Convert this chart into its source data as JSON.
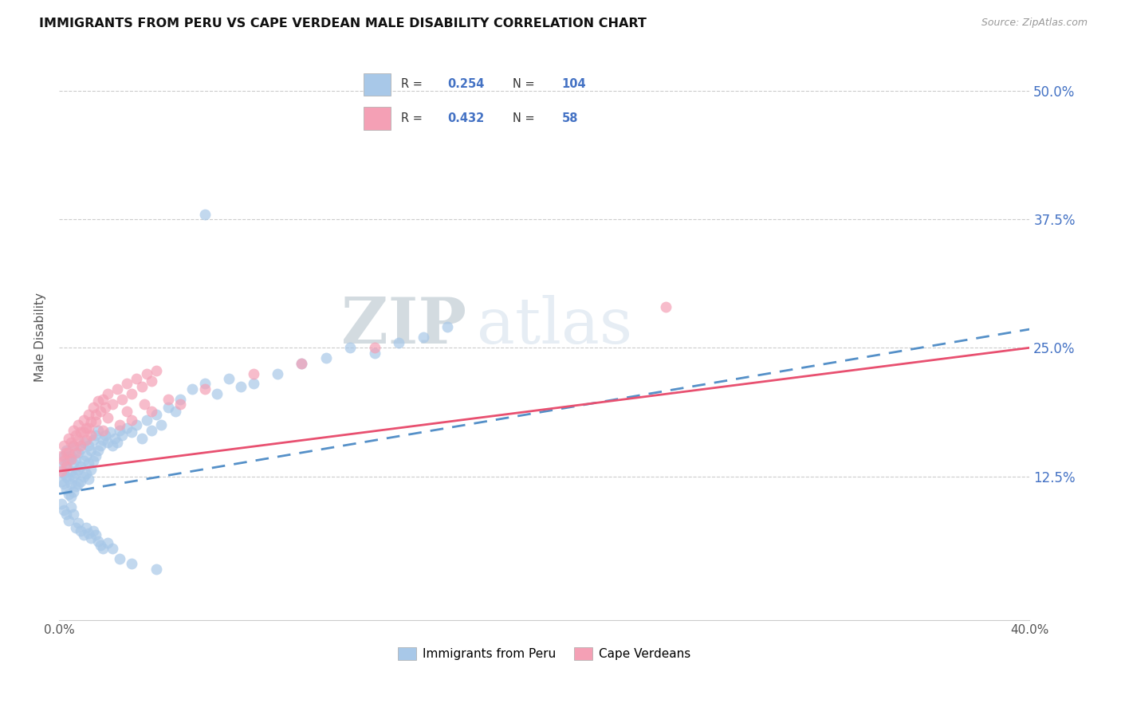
{
  "title": "IMMIGRANTS FROM PERU VS CAPE VERDEAN MALE DISABILITY CORRELATION CHART",
  "source": "Source: ZipAtlas.com",
  "ylabel": "Male Disability",
  "ytick_labels": [
    "12.5%",
    "25.0%",
    "37.5%",
    "50.0%"
  ],
  "ytick_values": [
    0.125,
    0.25,
    0.375,
    0.5
  ],
  "xlim": [
    0.0,
    0.4
  ],
  "ylim": [
    -0.015,
    0.535
  ],
  "legend_label1": "Immigrants from Peru",
  "legend_label2": "Cape Verdeans",
  "legend_R1": "0.254",
  "legend_N1": "104",
  "legend_R2": "0.432",
  "legend_N2": "58",
  "color1": "#a8c8e8",
  "color2": "#f4a0b5",
  "trendline1_color": "#5590c8",
  "trendline2_color": "#e85070",
  "watermark_color": "#c8d8e8",
  "trendline1_intercept": 0.108,
  "trendline1_slope": 0.4,
  "trendline2_intercept": 0.13,
  "trendline2_slope": 0.3,
  "peru_x": [
    0.001,
    0.001,
    0.002,
    0.002,
    0.002,
    0.003,
    0.003,
    0.003,
    0.003,
    0.004,
    0.004,
    0.004,
    0.005,
    0.005,
    0.005,
    0.005,
    0.006,
    0.006,
    0.006,
    0.006,
    0.007,
    0.007,
    0.007,
    0.008,
    0.008,
    0.008,
    0.009,
    0.009,
    0.009,
    0.01,
    0.01,
    0.01,
    0.011,
    0.011,
    0.012,
    0.012,
    0.012,
    0.013,
    0.013,
    0.014,
    0.014,
    0.015,
    0.015,
    0.016,
    0.016,
    0.017,
    0.018,
    0.019,
    0.02,
    0.021,
    0.022,
    0.023,
    0.024,
    0.025,
    0.026,
    0.028,
    0.03,
    0.032,
    0.034,
    0.036,
    0.038,
    0.04,
    0.042,
    0.045,
    0.048,
    0.05,
    0.055,
    0.06,
    0.065,
    0.07,
    0.075,
    0.08,
    0.09,
    0.1,
    0.11,
    0.12,
    0.13,
    0.14,
    0.15,
    0.16,
    0.001,
    0.002,
    0.003,
    0.004,
    0.005,
    0.006,
    0.007,
    0.008,
    0.009,
    0.01,
    0.011,
    0.012,
    0.013,
    0.014,
    0.015,
    0.016,
    0.017,
    0.018,
    0.02,
    0.022,
    0.025,
    0.03,
    0.04,
    0.06
  ],
  "peru_y": [
    0.12,
    0.135,
    0.118,
    0.128,
    0.145,
    0.112,
    0.125,
    0.138,
    0.15,
    0.108,
    0.122,
    0.14,
    0.105,
    0.118,
    0.13,
    0.145,
    0.11,
    0.125,
    0.138,
    0.155,
    0.115,
    0.128,
    0.142,
    0.118,
    0.132,
    0.148,
    0.12,
    0.135,
    0.152,
    0.125,
    0.14,
    0.158,
    0.128,
    0.145,
    0.122,
    0.138,
    0.155,
    0.132,
    0.15,
    0.14,
    0.16,
    0.145,
    0.165,
    0.15,
    0.17,
    0.155,
    0.16,
    0.165,
    0.158,
    0.168,
    0.155,
    0.162,
    0.158,
    0.17,
    0.165,
    0.172,
    0.168,
    0.175,
    0.162,
    0.18,
    0.17,
    0.185,
    0.175,
    0.192,
    0.188,
    0.2,
    0.21,
    0.215,
    0.205,
    0.22,
    0.212,
    0.215,
    0.225,
    0.235,
    0.24,
    0.25,
    0.245,
    0.255,
    0.26,
    0.27,
    0.098,
    0.092,
    0.088,
    0.082,
    0.095,
    0.088,
    0.075,
    0.08,
    0.072,
    0.068,
    0.075,
    0.07,
    0.065,
    0.072,
    0.068,
    0.062,
    0.058,
    0.055,
    0.06,
    0.055,
    0.045,
    0.04,
    0.035,
    0.38
  ],
  "cv_x": [
    0.001,
    0.002,
    0.003,
    0.004,
    0.005,
    0.006,
    0.007,
    0.008,
    0.009,
    0.01,
    0.011,
    0.012,
    0.013,
    0.014,
    0.015,
    0.016,
    0.017,
    0.018,
    0.019,
    0.02,
    0.022,
    0.024,
    0.026,
    0.028,
    0.03,
    0.032,
    0.034,
    0.036,
    0.038,
    0.04,
    0.001,
    0.002,
    0.003,
    0.004,
    0.005,
    0.006,
    0.007,
    0.008,
    0.009,
    0.01,
    0.011,
    0.012,
    0.013,
    0.015,
    0.018,
    0.02,
    0.025,
    0.028,
    0.03,
    0.035,
    0.038,
    0.045,
    0.05,
    0.06,
    0.08,
    0.1,
    0.13,
    0.25
  ],
  "cv_y": [
    0.145,
    0.155,
    0.148,
    0.162,
    0.158,
    0.17,
    0.165,
    0.175,
    0.168,
    0.18,
    0.172,
    0.185,
    0.178,
    0.192,
    0.185,
    0.198,
    0.188,
    0.2,
    0.192,
    0.205,
    0.195,
    0.21,
    0.2,
    0.215,
    0.205,
    0.22,
    0.212,
    0.225,
    0.218,
    0.228,
    0.13,
    0.14,
    0.135,
    0.148,
    0.142,
    0.155,
    0.148,
    0.16,
    0.155,
    0.168,
    0.16,
    0.172,
    0.165,
    0.178,
    0.17,
    0.182,
    0.175,
    0.188,
    0.18,
    0.195,
    0.188,
    0.2,
    0.195,
    0.21,
    0.225,
    0.235,
    0.25,
    0.29
  ]
}
